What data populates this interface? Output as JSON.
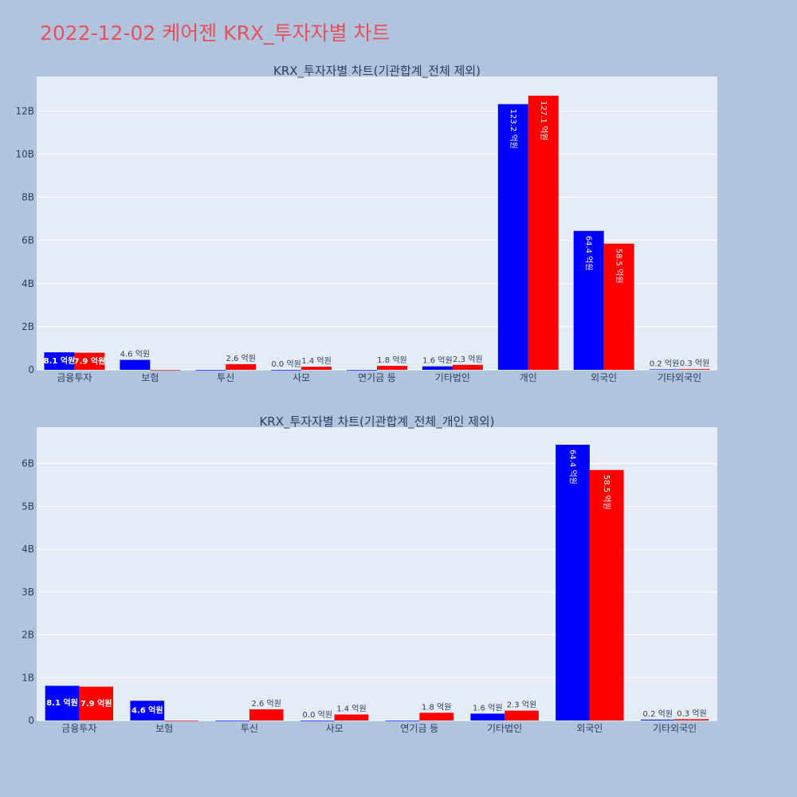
{
  "title": "2022-12-02 케어젠 KRX_투자자별 차트",
  "colors": {
    "series1": "#0000ff",
    "series2": "#ff0000",
    "plot_bg": "#e5ecf6",
    "page_bg": "#b0c4de",
    "title": "#e8505b"
  },
  "chart_data": [
    {
      "type": "bar",
      "title": "KRX_투자자별 차트(기관합계_전체 제외)",
      "categories": [
        "금융투자",
        "보험",
        "투신",
        "사모",
        "연기금 등",
        "기타법인",
        "개인",
        "외국인",
        "기타외국인"
      ],
      "series": [
        {
          "values": [
            0.81,
            0.46,
            0,
            0.0,
            0,
            0.16,
            12.32,
            6.44,
            0.02
          ],
          "labels": [
            "8.1 억원",
            "4.6 억원",
            "",
            "0.0 억원",
            "",
            "1.6 억원",
            "123.2 억원",
            "64.4 억원",
            "0.2 억원"
          ]
        },
        {
          "values": [
            0.79,
            0,
            0.26,
            0.14,
            0.18,
            0.23,
            12.71,
            5.85,
            0.03
          ],
          "labels": [
            "7.9 억원",
            "",
            "2.6 억원",
            "1.4 억원",
            "1.8 억원",
            "2.3 억원",
            "127.1 억원",
            "58.5 억원",
            "0.3 억원"
          ]
        }
      ],
      "ylim": [
        0,
        13.6
      ],
      "yticks": [
        0,
        2,
        4,
        6,
        8,
        10,
        12
      ],
      "ytick_labels": [
        "0",
        "2B",
        "4B",
        "6B",
        "8B",
        "10B",
        "12B"
      ],
      "grid": true
    },
    {
      "type": "bar",
      "title": "KRX_투자자별 차트(기관합계_전체_개인 제외)",
      "categories": [
        "금융투자",
        "보험",
        "투신",
        "사모",
        "연기금 등",
        "기타법인",
        "외국인",
        "기타외국인"
      ],
      "series": [
        {
          "values": [
            0.81,
            0.46,
            0,
            0.0,
            0,
            0.16,
            6.44,
            0.02
          ],
          "labels": [
            "8.1 억원",
            "4.6 억원",
            "",
            "0.0 억원",
            "",
            "1.6 억원",
            "64.4 억원",
            "0.2 억원"
          ]
        },
        {
          "values": [
            0.79,
            0,
            0.26,
            0.14,
            0.18,
            0.23,
            5.85,
            0.03
          ],
          "labels": [
            "7.9 억원",
            "",
            "2.6 억원",
            "1.4 억원",
            "1.8 억원",
            "2.3 억원",
            "58.5 억원",
            "0.3 억원"
          ]
        }
      ],
      "ylim": [
        0,
        6.85
      ],
      "yticks": [
        0,
        1,
        2,
        3,
        4,
        5,
        6
      ],
      "ytick_labels": [
        "0",
        "1B",
        "2B",
        "3B",
        "4B",
        "5B",
        "6B"
      ],
      "grid": true
    }
  ]
}
